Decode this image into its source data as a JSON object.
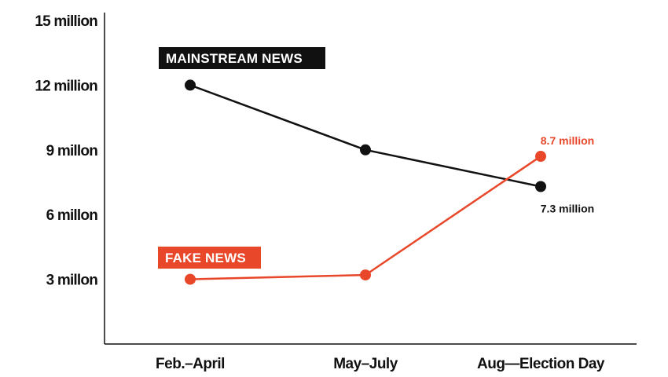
{
  "chart_data": {
    "type": "line",
    "categories": [
      "Feb.–April",
      "May–July",
      "Aug—Election Day"
    ],
    "y_ticks": [
      {
        "value": 3,
        "label": "3 millon"
      },
      {
        "value": 6,
        "label": "6 millon"
      },
      {
        "value": 9,
        "label": "9 millon"
      },
      {
        "value": 12,
        "label": "12 million"
      },
      {
        "value": 15,
        "label": "15 million"
      }
    ],
    "ylim": [
      0,
      15
    ],
    "grid": false,
    "series": [
      {
        "name": "MAINSTREAM NEWS",
        "values": [
          12.0,
          9.0,
          7.3
        ],
        "color": "#111111",
        "end_label": "7.3 million"
      },
      {
        "name": "FAKE NEWS",
        "values": [
          3.0,
          3.2,
          8.7
        ],
        "color": "#e8472a",
        "end_label": "8.7 million"
      }
    ]
  }
}
